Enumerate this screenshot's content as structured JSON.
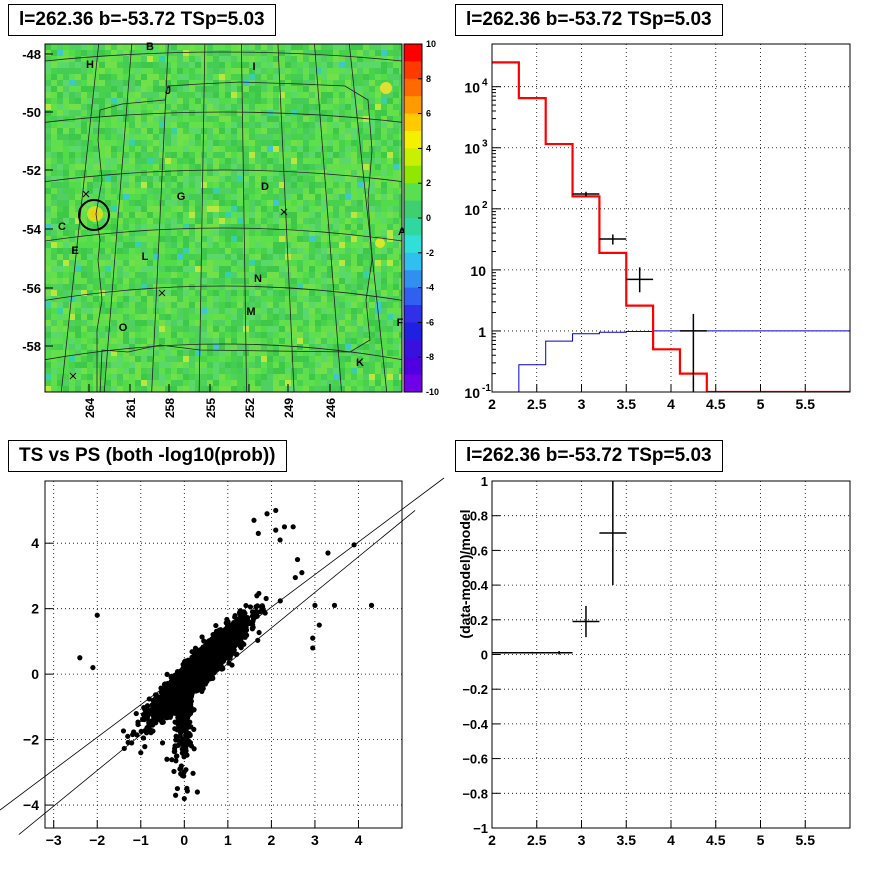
{
  "panels": {
    "skymap": {
      "title": "l=262.36 b=-53.72 TSp=5.03",
      "x_ticks": [
        "264",
        "261",
        "258",
        "255",
        "252",
        "249",
        "246"
      ],
      "y_ticks": [
        "-48",
        "-50",
        "-52",
        "-54",
        "-56",
        "-58"
      ],
      "colorbar_ticks": [
        "10",
        "8",
        "6",
        "4",
        "2",
        "0",
        "-2",
        "-4",
        "-6",
        "-8",
        "-10"
      ],
      "region_labels": [
        "B",
        "H",
        "I",
        "J",
        "G",
        "D",
        "C",
        "E",
        "L",
        "A",
        "N",
        "M",
        "O",
        "F",
        "K"
      ]
    },
    "spectrum": {
      "title": "l=262.36 b=-53.72 TSp=5.03"
    },
    "scatter": {
      "title": "TS vs PS (both -log10(prob))"
    },
    "residual": {
      "title": "l=262.36 b=-53.72 TSp=5.03"
    }
  },
  "colors": {
    "model": "#ff0000",
    "background": "#0000cc",
    "data": "#000000",
    "grid": "#000000"
  },
  "chart_data": [
    {
      "type": "heatmap",
      "title": "l=262.36 b=-53.72 TSp=5.03",
      "x_tick_labels": [
        "264",
        "261",
        "258",
        "255",
        "252",
        "249",
        "246"
      ],
      "y_tick_labels": [
        "-48",
        "-50",
        "-52",
        "-54",
        "-56",
        "-58"
      ],
      "zlim": [
        -10,
        10
      ],
      "colorbar_ticks": [
        10,
        8,
        6,
        4,
        2,
        0,
        -2,
        -4,
        -6,
        -8,
        -10
      ]
    },
    {
      "type": "line",
      "title": "l=262.36 b=-53.72 TSp=5.03",
      "xlim": [
        2,
        6
      ],
      "ylim": [
        0.1,
        50000
      ],
      "log_y": true,
      "x_ticks": [
        "2",
        "2.5",
        "3",
        "3.5",
        "4",
        "4.5",
        "5",
        "5.5"
      ],
      "y_ticks": [
        "10^-1",
        "1",
        "10",
        "10^2",
        "10^3",
        "10^4"
      ],
      "bin_edges": [
        2,
        2.3,
        2.6,
        2.9,
        3.2,
        3.5,
        3.8,
        4.1,
        4.4,
        6
      ],
      "series": [
        {
          "values": [
            25000,
            6500,
            1150,
            160,
            19,
            2.6,
            0.5,
            0.2,
            0.1
          ]
        },
        {
          "values": [
            0.05,
            0.28,
            0.68,
            0.9,
            0.95,
            0.98,
            1.0,
            1.0,
            1.0
          ]
        }
      ],
      "data_points": [
        {
          "x": 3.05,
          "xerr": 0.15,
          "y": 175,
          "ylo": 160,
          "yhi": 190
        },
        {
          "x": 3.35,
          "xerr": 0.15,
          "y": 32,
          "ylo": 26,
          "yhi": 38
        },
        {
          "x": 3.65,
          "xerr": 0.15,
          "y": 7,
          "ylo": 4.3,
          "yhi": 11
        },
        {
          "x": 4.25,
          "xerr": 0.15,
          "y": 1,
          "ylo": 0.1,
          "yhi": 1.9
        }
      ],
      "grid": true
    },
    {
      "type": "scatter",
      "title": "TS vs PS (both -log10(prob))",
      "xlim": [
        -3.2,
        5
      ],
      "ylim": [
        -4.7,
        5.9
      ],
      "x_ticks": [
        "-3",
        "-2",
        "-1",
        "0",
        "1",
        "2",
        "3",
        "4"
      ],
      "y_ticks": [
        "-4",
        "-2",
        "0",
        "2",
        "4"
      ],
      "points": [
        [
          -2,
          1.8
        ],
        [
          -2.4,
          0.5
        ],
        [
          -2.1,
          0.2
        ],
        [
          0.3,
          -3.6
        ],
        [
          0,
          -3.8
        ],
        [
          -0.2,
          -3.7
        ],
        [
          4.3,
          2.1
        ],
        [
          3.9,
          3.95
        ],
        [
          3.3,
          3.7
        ],
        [
          2.55,
          2.95
        ],
        [
          2.5,
          4.5
        ],
        [
          2.3,
          4.5
        ],
        [
          1.6,
          4.7
        ],
        [
          1.9,
          4.9
        ],
        [
          2.1,
          5
        ],
        [
          2.2,
          4.1
        ],
        [
          3.45,
          2.1
        ],
        [
          1.7,
          4.3
        ],
        [
          2.1,
          4.4
        ],
        [
          2.6,
          3.5
        ],
        [
          2.7,
          3.1
        ],
        [
          3,
          2.1
        ],
        [
          2.95,
          1.1
        ],
        [
          2.95,
          0.8
        ],
        [
          3.1,
          1.5
        ],
        [
          -1.3,
          -1.9
        ],
        [
          -1,
          -2.4
        ],
        [
          -0.1,
          -2.9
        ],
        [
          -0.5,
          -2.1
        ],
        [
          -0.4,
          -2.6
        ]
      ],
      "dense_cluster": {
        "center": [
          0.3,
          0.1
        ],
        "spread": [
          0.7,
          0.9
        ],
        "count": 2500
      },
      "reference_line": {
        "slope": 1,
        "intercept": 0
      },
      "grid": true
    },
    {
      "type": "scatter",
      "title": "l=262.36 b=-53.72 TSp=5.03",
      "ylabel": "(data-model)/model",
      "xlim": [
        2,
        6
      ],
      "ylim": [
        -1,
        1
      ],
      "x_ticks": [
        "2",
        "2.5",
        "3",
        "3.5",
        "4",
        "4.5",
        "5",
        "5.5"
      ],
      "y_ticks": [
        "-1",
        "-0.8",
        "-0.6",
        "-0.4",
        "-0.2",
        "0",
        "0.2",
        "0.4",
        "0.6",
        "0.8",
        "1"
      ],
      "data_points": [
        {
          "x": 2.15,
          "xerr": 0.15,
          "y": 0.01,
          "yerr": 0.005
        },
        {
          "x": 2.45,
          "xerr": 0.15,
          "y": 0.01,
          "yerr": 0.005
        },
        {
          "x": 2.75,
          "xerr": 0.15,
          "y": 0.01,
          "yerr": 0.01
        },
        {
          "x": 3.05,
          "xerr": 0.15,
          "y": 0.19,
          "yerr": 0.09
        },
        {
          "x": 3.35,
          "xerr": 0.15,
          "y": 0.7,
          "yerr": 0.3
        }
      ],
      "grid": true
    }
  ]
}
